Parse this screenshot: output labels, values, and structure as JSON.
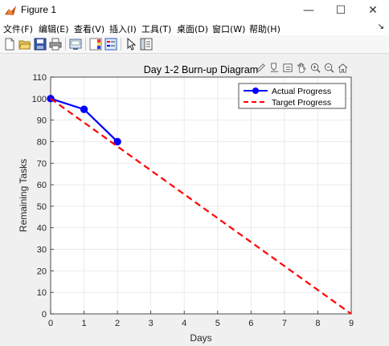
{
  "window": {
    "title": "Figure 1",
    "minimize_glyph": "—",
    "maximize_glyph": "☐",
    "close_glyph": "✕"
  },
  "menu": {
    "items": [
      "文件(F)",
      "编辑(E)",
      "查看(V)",
      "插入(I)",
      "工具(T)",
      "桌面(D)",
      "窗口(W)",
      "帮助(H)"
    ],
    "overflow_glyph": "↘"
  },
  "toolbar": {
    "buttons": [
      "new-figure-icon",
      "open-file-icon",
      "save-icon",
      "print-icon",
      "link-plot-icon",
      "colorbar-icon",
      "legend-icon",
      "pointer-icon",
      "property-inspector-icon"
    ]
  },
  "axes_toolbar": {
    "buttons": [
      "brush-icon",
      "data-tips-icon",
      "export-icon",
      "pan-icon",
      "zoom-in-icon",
      "zoom-out-icon",
      "home-icon"
    ]
  },
  "chart_data": {
    "type": "line",
    "title": "Day 1-2 Burn-up Diagram",
    "xlabel": "Days",
    "ylabel": "Remaining Tasks",
    "xlim": [
      0,
      9
    ],
    "ylim": [
      0,
      110
    ],
    "xticks": [
      0,
      1,
      2,
      3,
      4,
      5,
      6,
      7,
      8,
      9
    ],
    "yticks": [
      0,
      10,
      20,
      30,
      40,
      50,
      60,
      70,
      80,
      90,
      100,
      110
    ],
    "grid": true,
    "legend_position": "top-right",
    "series": [
      {
        "name": "Actual Progress",
        "x": [
          0,
          1,
          2
        ],
        "y": [
          100,
          95,
          80
        ],
        "color": "#0000ff",
        "style": "solid",
        "marker": "circle"
      },
      {
        "name": "Target Progress",
        "x": [
          0,
          9
        ],
        "y": [
          100,
          0
        ],
        "color": "#ff0000",
        "style": "dashed",
        "marker": "none"
      }
    ]
  }
}
